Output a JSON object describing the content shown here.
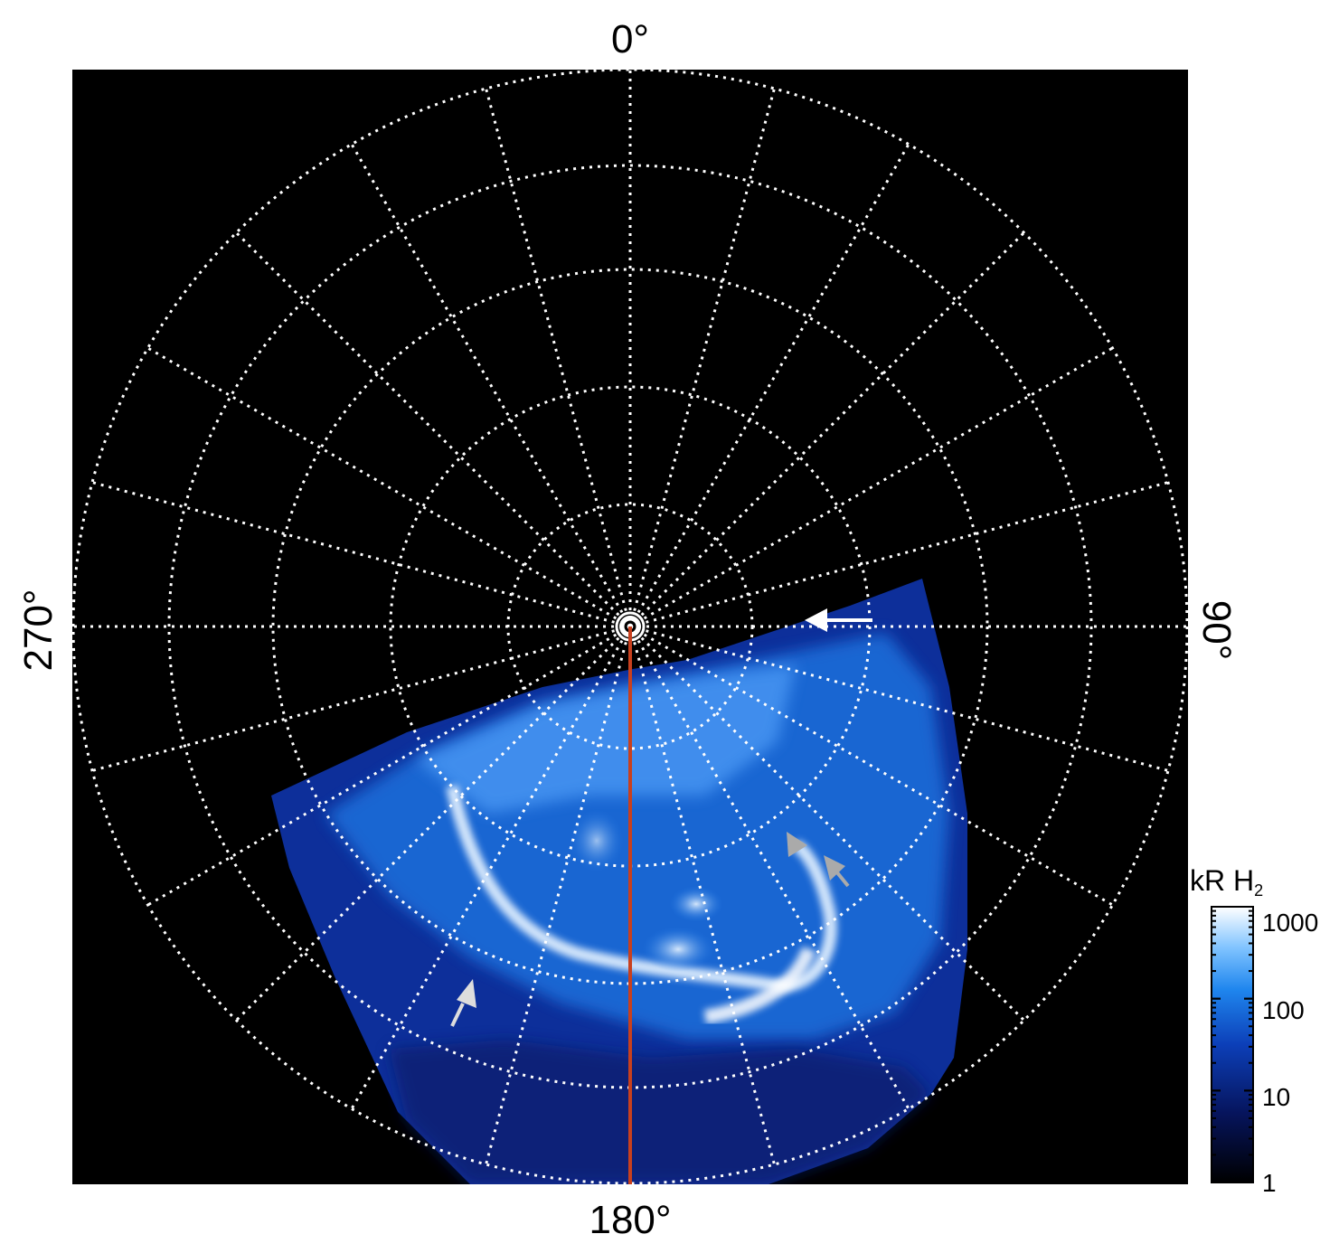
{
  "labels": {
    "top": "0°",
    "bottom": "180°",
    "left": "270°",
    "right": "90°"
  },
  "colorbar": {
    "title_main": "kR H",
    "title_sub": "2",
    "ticks": [
      "1000",
      "100",
      "10",
      "1"
    ],
    "scale": "log"
  },
  "colors": {
    "background": "#000000",
    "grid": "#ffffff",
    "meridian_line": "#c8401e",
    "aurora_dim": "#0a1a6e",
    "aurora_mid": "#1e78e6",
    "aurora_bright": "#ffffff",
    "arrow_white": "#ffffff",
    "arrow_gray": "#aaaaaa"
  },
  "grid": {
    "style": "dotted",
    "longitude_step_deg": 15,
    "latitude_rings": 5
  }
}
